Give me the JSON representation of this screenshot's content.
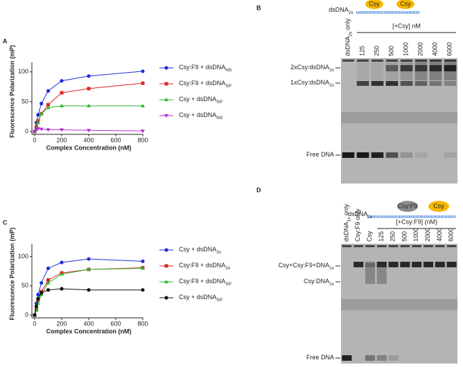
{
  "chart_data": [
    {
      "type": "line",
      "label": "A",
      "y_label": "Fluorescence Polarization (mP)",
      "x_label": "Complex Concentration (nM)",
      "x": [
        0,
        12.5,
        25,
        50,
        100,
        200,
        400,
        800
      ],
      "xlim": [
        0,
        800
      ],
      "xticks": [
        0,
        200,
        400,
        600,
        800
      ],
      "ylim": [
        0,
        116
      ],
      "yticks": [
        0,
        50,
        100
      ],
      "series": [
        {
          "name": "Csy:F9 + dsDNA",
          "name_sub": "NS",
          "color": "#1f2ed6",
          "marker": "circle",
          "values": [
            0,
            15,
            28,
            47,
            68,
            85,
            93,
            101
          ]
        },
        {
          "name": "Csy:F9 + dsDNA",
          "name_sub": "SP",
          "color": "#e02424",
          "marker": "square",
          "values": [
            0,
            8,
            18,
            30,
            45,
            65,
            72,
            81
          ]
        },
        {
          "name": "Csy + dsDNA",
          "name_sub": "SP",
          "color": "#2bb52b",
          "marker": "triangle",
          "values": [
            0,
            5,
            15,
            30,
            40,
            43,
            43,
            43
          ]
        },
        {
          "name": "Csy + dsDNA",
          "name_sub": "NS",
          "color": "#b52bd6",
          "marker": "triangle-down",
          "values": [
            0,
            3,
            5,
            4,
            3,
            3,
            2,
            1
          ]
        }
      ]
    },
    {
      "type": "line",
      "label": "C",
      "y_label": "Fluorescence Polarization (mP)",
      "x_label": "Complex Concentration (nM)",
      "x": [
        0,
        12.5,
        25,
        50,
        100,
        200,
        400,
        800
      ],
      "xlim": [
        0,
        800
      ],
      "xticks": [
        0,
        200,
        400,
        600,
        800
      ],
      "ylim": [
        0,
        122
      ],
      "yticks": [
        0,
        50,
        100
      ],
      "series": [
        {
          "name": "Csy + dsDNA",
          "name_sub": "2x",
          "color": "#1f2ed6",
          "marker": "circle",
          "values": [
            0,
            20,
            35,
            55,
            80,
            90,
            96,
            92
          ]
        },
        {
          "name": "Csy:F9 + dsDNA",
          "name_sub": "2x",
          "color": "#e02424",
          "marker": "square",
          "values": [
            0,
            10,
            25,
            40,
            60,
            72,
            78,
            81
          ]
        },
        {
          "name": "Csy:F9 + dsDNA",
          "name_sub": "SP",
          "color": "#2bb52b",
          "marker": "triangle",
          "values": [
            0,
            8,
            20,
            35,
            55,
            70,
            78,
            80
          ]
        },
        {
          "name": "Csy + dsDNA",
          "name_sub": "SP",
          "color": "#111111",
          "marker": "circle",
          "values": [
            0,
            15,
            28,
            38,
            43,
            45,
            43,
            43
          ]
        }
      ]
    }
  ],
  "gels": [
    {
      "label": "B",
      "construct": {
        "text": "dsDNA",
        "sub": "2x"
      },
      "proteins": [
        "Csy",
        "Csy"
      ],
      "lanes": [
        {
          "text": "dsDNA",
          "sub": "2x",
          "tail": " only"
        },
        {
          "text": "125"
        },
        {
          "text": "250"
        },
        {
          "text": "500"
        },
        {
          "text": "1000"
        },
        {
          "text": "2000"
        },
        {
          "text": "4000"
        },
        {
          "text": "6000"
        }
      ],
      "group_label": "[+Csy] nM",
      "band_labels": [
        {
          "text": "2xCsy:dsDNA",
          "sub": "2x"
        },
        {
          "text": "1xCsy:dsDNA",
          "sub": "2x"
        },
        {
          "text": "Free DNA"
        }
      ]
    },
    {
      "label": "D",
      "construct": {
        "text": "dsDNA",
        "sub": "1x"
      },
      "proteins": [
        "Csy:F9",
        "Csy"
      ],
      "lanes": [
        {
          "text": "dsDNA",
          "sub": "1x",
          "tail": " only"
        },
        {
          "text": "Csy:F9 only"
        },
        {
          "text": "Csy"
        },
        {
          "text": "125"
        },
        {
          "text": "250"
        },
        {
          "text": "500"
        },
        {
          "text": "1000"
        },
        {
          "text": "2000"
        },
        {
          "text": "4000"
        },
        {
          "text": "6000"
        }
      ],
      "group_label": "[+Csy:F9] (nM)",
      "band_labels": [
        {
          "text": "Csy+Csy:F9+DNA",
          "sub": "1x"
        },
        {
          "text": "Csy:DNA",
          "sub": "1x"
        },
        {
          "text": "Free DNA"
        }
      ]
    }
  ]
}
